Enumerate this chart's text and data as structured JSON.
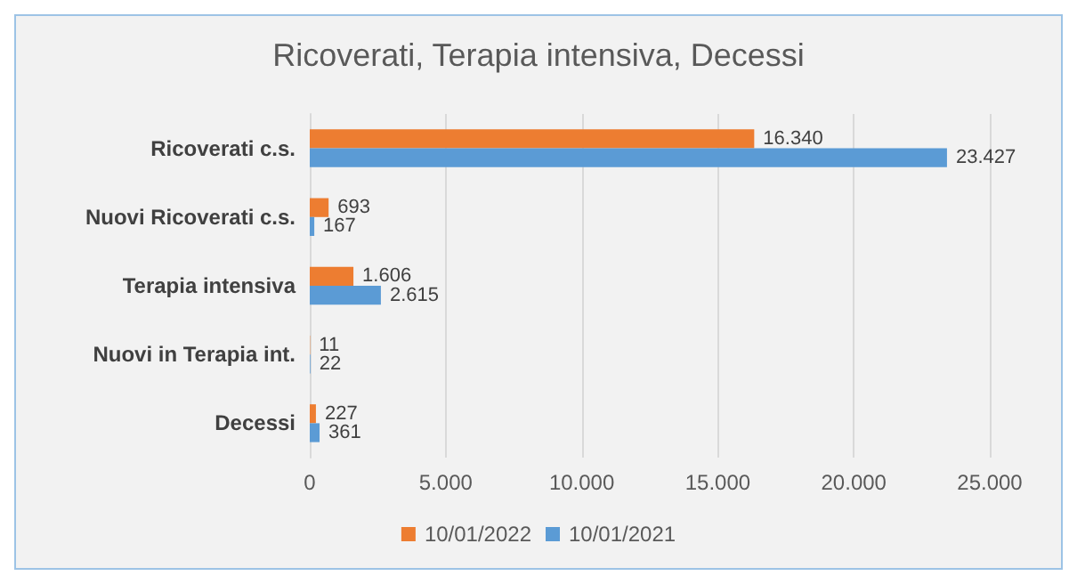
{
  "chart_data": {
    "type": "bar",
    "orientation": "horizontal",
    "title": "Ricoverati, Terapia intensiva, Decessi",
    "categories": [
      "Ricoverati c.s.",
      "Nuovi Ricoverati c.s.",
      "Terapia intensiva",
      "Nuovi in Terapia int.",
      "Decessi"
    ],
    "series": [
      {
        "name": "10/01/2022",
        "color": "#ed7d31",
        "values": [
          16340,
          693,
          1606,
          11,
          227
        ],
        "value_labels": [
          "16.340",
          "693",
          "1.606",
          "11",
          "227"
        ]
      },
      {
        "name": "10/01/2021",
        "color": "#5b9bd5",
        "values": [
          23427,
          167,
          2615,
          22,
          361
        ],
        "value_labels": [
          "23.427",
          "167",
          "2.615",
          "22",
          "361"
        ]
      }
    ],
    "xlim": [
      0,
      25000
    ],
    "xticks": [
      0,
      {
        "value": 5000,
        "label": "5.000"
      },
      {
        "value": 10000,
        "label": "10.000"
      },
      {
        "value": 15000,
        "label": "15.000"
      },
      {
        "value": 20000,
        "label": "20.000"
      },
      {
        "value": 25000,
        "label": "25.000"
      }
    ],
    "grid": "x",
    "legend": "bottom"
  }
}
